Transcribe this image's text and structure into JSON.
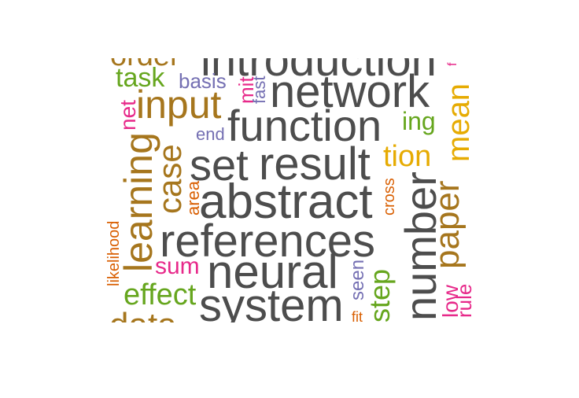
{
  "colors": {
    "gray": "#4d4d4d",
    "brown": "#a6761d",
    "orange": "#d95f02",
    "green": "#66a61e",
    "purple": "#7570b3",
    "magenta": "#e7298a",
    "gold": "#e6ab02"
  },
  "words": [
    {
      "text": "order",
      "color": "brown",
      "rotate": false
    },
    {
      "text": "introduction",
      "color": "gray",
      "rotate": false
    },
    {
      "text": "f",
      "color": "magenta",
      "rotate": true
    },
    {
      "text": "task",
      "color": "green",
      "rotate": false
    },
    {
      "text": "basis",
      "color": "purple",
      "rotate": false
    },
    {
      "text": "mit",
      "color": "magenta",
      "rotate": true
    },
    {
      "text": "fast",
      "color": "purple",
      "rotate": true
    },
    {
      "text": "network",
      "color": "gray",
      "rotate": false
    },
    {
      "text": "mean",
      "color": "gold",
      "rotate": true
    },
    {
      "text": "net",
      "color": "magenta",
      "rotate": true
    },
    {
      "text": "input",
      "color": "brown",
      "rotate": false
    },
    {
      "text": "ing",
      "color": "green",
      "rotate": false
    },
    {
      "text": "function",
      "color": "gray",
      "rotate": false
    },
    {
      "text": "end",
      "color": "purple",
      "rotate": false
    },
    {
      "text": "learning",
      "color": "brown",
      "rotate": true
    },
    {
      "text": "case",
      "color": "brown",
      "rotate": true
    },
    {
      "text": "set",
      "color": "gray",
      "rotate": false
    },
    {
      "text": "result",
      "color": "gray",
      "rotate": false
    },
    {
      "text": "tion",
      "color": "gold",
      "rotate": false
    },
    {
      "text": "area",
      "color": "orange",
      "rotate": true
    },
    {
      "text": "cross",
      "color": "orange",
      "rotate": true
    },
    {
      "text": "abstract",
      "color": "gray",
      "rotate": false
    },
    {
      "text": "number",
      "color": "gray",
      "rotate": true
    },
    {
      "text": "paper",
      "color": "brown",
      "rotate": true
    },
    {
      "text": "likelihood",
      "color": "orange",
      "rotate": true
    },
    {
      "text": "references",
      "color": "gray",
      "rotate": false
    },
    {
      "text": "sum",
      "color": "magenta",
      "rotate": false
    },
    {
      "text": "seen",
      "color": "purple",
      "rotate": true
    },
    {
      "text": "neural",
      "color": "gray",
      "rotate": false
    },
    {
      "text": "step",
      "color": "green",
      "rotate": true
    },
    {
      "text": "low",
      "color": "magenta",
      "rotate": true
    },
    {
      "text": "effect",
      "color": "green",
      "rotate": false
    },
    {
      "text": "rule",
      "color": "magenta",
      "rotate": true
    },
    {
      "text": "system",
      "color": "gray",
      "rotate": false
    },
    {
      "text": "data",
      "color": "brown",
      "rotate": false
    },
    {
      "text": "fit",
      "color": "orange",
      "rotate": false
    }
  ]
}
